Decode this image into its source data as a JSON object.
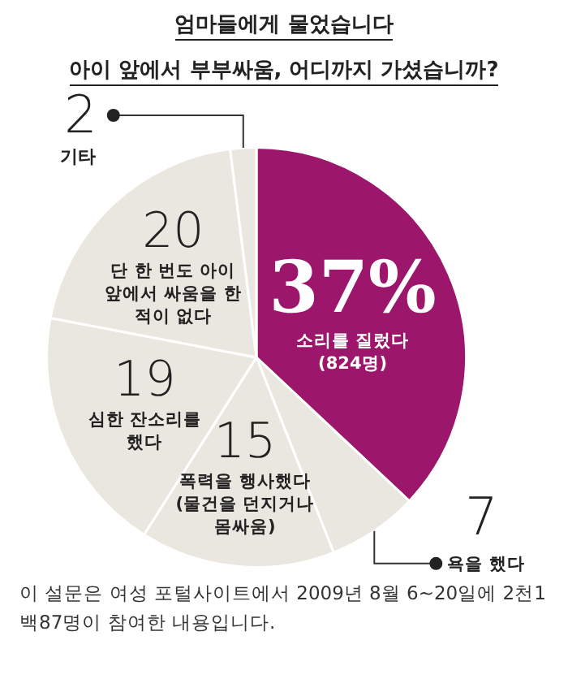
{
  "chart_data": {
    "type": "pie",
    "title": "엄마들에게 물었습니다",
    "subtitle": "아이 앞에서 부부싸움, 어디까지 가셨습니까?",
    "categories": [
      "소리를 질렀다 (824명)",
      "욕을 했다",
      "폭력을 행사했다 (물건을 던지거나 몸싸움)",
      "심한 잔소리를 했다",
      "단 한 번도 아이 앞에서 싸움을 한 적이 없다",
      "기타"
    ],
    "values": [
      37,
      7,
      15,
      19,
      20,
      2
    ],
    "colors": [
      "#9c166b",
      "#e9e7e0",
      "#e9e7e0",
      "#e9e7e0",
      "#e9e7e0",
      "#e9e7e0"
    ],
    "value_labels": [
      "37%",
      "7",
      "15",
      "19",
      "20",
      "2"
    ],
    "annotations": [
      "이 설문은 여성 포털사이트에서 2009년 8월 6~20일에 2천1백87명이 참여한 내용입니다."
    ]
  }
}
